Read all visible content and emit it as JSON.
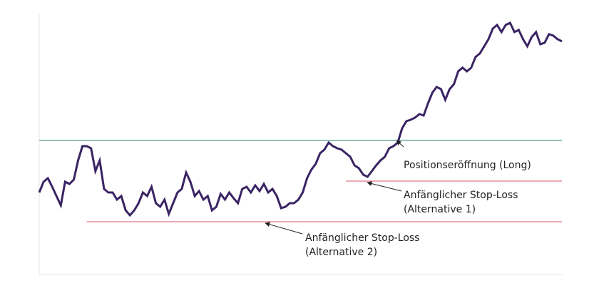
{
  "chart_data": {
    "type": "line",
    "color": "#3a2463",
    "ylim": [
      0,
      360
    ],
    "values": [
      115,
      130,
      135,
      123,
      110,
      97,
      130,
      127,
      133,
      160,
      180,
      180,
      177,
      145,
      160,
      120,
      115,
      115,
      105,
      110,
      90,
      83,
      90,
      100,
      115,
      110,
      123,
      100,
      95,
      105,
      85,
      100,
      115,
      120,
      143,
      130,
      110,
      117,
      105,
      110,
      90,
      95,
      113,
      105,
      115,
      107,
      100,
      120,
      123,
      115,
      125,
      117,
      127,
      115,
      120,
      110,
      93,
      95,
      100,
      100,
      105,
      115,
      135,
      147,
      155,
      170,
      175,
      185,
      180,
      177,
      175,
      170,
      165,
      153,
      149,
      140,
      137,
      145,
      153,
      160,
      165,
      177,
      180,
      185,
      205,
      215,
      217,
      220,
      225,
      223,
      240,
      255,
      263,
      260,
      245,
      260,
      267,
      285,
      290,
      285,
      290,
      305,
      310,
      320,
      330,
      345,
      350,
      340,
      350,
      353,
      340,
      343,
      330,
      320,
      333,
      340,
      323,
      325,
      337,
      335,
      330,
      327
    ],
    "reference_lines": [
      {
        "value": 188,
        "start": 0,
        "color": "#4f9a8f"
      },
      {
        "value": 131,
        "start": 71,
        "color": "#e8778a"
      },
      {
        "value": 74,
        "start": 11,
        "color": "#e8778a"
      }
    ],
    "annotations": [
      {
        "lines": [
          "Positionseröffnung (Long)"
        ]
      },
      {
        "lines": [
          "Anfänglicher Stop-Loss",
          "(Alternative 1)"
        ]
      },
      {
        "lines": [
          "Anfänglicher Stop-Loss",
          "(Alternative 2)"
        ]
      }
    ]
  }
}
